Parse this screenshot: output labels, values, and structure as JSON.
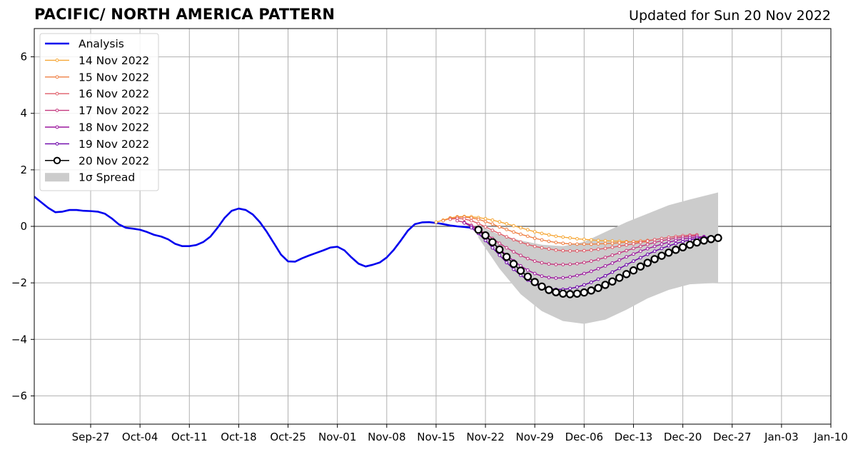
{
  "header": {
    "title": "PACIFIC/ NORTH AMERICA PATTERN",
    "updated": "Updated for Sun 20 Nov 2022"
  },
  "chart_data": {
    "type": "line",
    "ylim": [
      -7,
      7
    ],
    "yticks": [
      6,
      4,
      2,
      0,
      -2,
      -4,
      -6
    ],
    "ytick_labels": [
      "6",
      "4",
      "2",
      "0",
      "−2",
      "−4",
      "−6"
    ],
    "xlim": [
      "2022-09-19",
      "2023-01-10"
    ],
    "xticks": [
      "2022-09-27",
      "2022-10-04",
      "2022-10-11",
      "2022-10-18",
      "2022-10-25",
      "2022-11-01",
      "2022-11-08",
      "2022-11-15",
      "2022-11-22",
      "2022-11-29",
      "2022-12-06",
      "2022-12-13",
      "2022-12-20",
      "2022-12-27",
      "2023-01-03",
      "2023-01-10"
    ],
    "xtick_labels": [
      "Sep-27",
      "Oct-04",
      "Oct-11",
      "Oct-18",
      "Oct-25",
      "Nov-01",
      "Nov-08",
      "Nov-15",
      "Nov-22",
      "Nov-29",
      "Dec-06",
      "Dec-13",
      "Dec-20",
      "Dec-27",
      "Jan-03",
      "Jan-10"
    ],
    "grid": true,
    "legend_position": "top-left",
    "series": [
      {
        "name": "Analysis",
        "color": "#0000ee",
        "x": [
          "2022-09-19",
          "2022-09-20",
          "2022-09-21",
          "2022-09-22",
          "2022-09-23",
          "2022-09-24",
          "2022-09-25",
          "2022-09-26",
          "2022-09-27",
          "2022-09-28",
          "2022-09-29",
          "2022-09-30",
          "2022-10-01",
          "2022-10-02",
          "2022-10-03",
          "2022-10-04",
          "2022-10-05",
          "2022-10-06",
          "2022-10-07",
          "2022-10-08",
          "2022-10-09",
          "2022-10-10",
          "2022-10-11",
          "2022-10-12",
          "2022-10-13",
          "2022-10-14",
          "2022-10-15",
          "2022-10-16",
          "2022-10-17",
          "2022-10-18",
          "2022-10-19",
          "2022-10-20",
          "2022-10-21",
          "2022-10-22",
          "2022-10-23",
          "2022-10-24",
          "2022-10-25",
          "2022-10-26",
          "2022-10-27",
          "2022-10-28",
          "2022-10-29",
          "2022-10-30",
          "2022-10-31",
          "2022-11-01",
          "2022-11-02",
          "2022-11-03",
          "2022-11-04",
          "2022-11-05",
          "2022-11-06",
          "2022-11-07",
          "2022-11-08",
          "2022-11-09",
          "2022-11-10",
          "2022-11-11",
          "2022-11-12",
          "2022-11-13",
          "2022-11-14",
          "2022-11-15",
          "2022-11-16",
          "2022-11-17",
          "2022-11-18",
          "2022-11-19",
          "2022-11-20"
        ],
        "values": [
          1.05,
          0.85,
          0.65,
          0.5,
          0.52,
          0.58,
          0.58,
          0.55,
          0.54,
          0.52,
          0.45,
          0.28,
          0.07,
          -0.05,
          -0.08,
          -0.12,
          -0.2,
          -0.3,
          -0.36,
          -0.46,
          -0.62,
          -0.7,
          -0.7,
          -0.66,
          -0.55,
          -0.36,
          -0.05,
          0.3,
          0.55,
          0.63,
          0.58,
          0.42,
          0.15,
          -0.2,
          -0.6,
          -1.0,
          -1.24,
          -1.25,
          -1.13,
          -1.03,
          -0.94,
          -0.85,
          -0.75,
          -0.72,
          -0.85,
          -1.1,
          -1.32,
          -1.42,
          -1.36,
          -1.28,
          -1.1,
          -0.83,
          -0.5,
          -0.15,
          0.08,
          0.14,
          0.15,
          0.12,
          0.08,
          0.03,
          0.0,
          -0.02,
          -0.05
        ]
      },
      {
        "name": "14 Nov 2022",
        "color": "#f6a736",
        "x": [
          "2022-11-15",
          "2022-11-16",
          "2022-11-17",
          "2022-11-18",
          "2022-11-19",
          "2022-11-20",
          "2022-11-21",
          "2022-11-22",
          "2022-11-23",
          "2022-11-24",
          "2022-11-25",
          "2022-11-26",
          "2022-11-27",
          "2022-11-28",
          "2022-11-29",
          "2022-11-30",
          "2022-12-01",
          "2022-12-02",
          "2022-12-03",
          "2022-12-04",
          "2022-12-05",
          "2022-12-06",
          "2022-12-07",
          "2022-12-08",
          "2022-12-09",
          "2022-12-10",
          "2022-12-11",
          "2022-12-12",
          "2022-12-13",
          "2022-12-14",
          "2022-12-15"
        ],
        "values": [
          0.15,
          0.22,
          0.3,
          0.34,
          0.35,
          0.34,
          0.31,
          0.27,
          0.22,
          0.16,
          0.09,
          0.02,
          -0.05,
          -0.12,
          -0.19,
          -0.25,
          -0.3,
          -0.35,
          -0.38,
          -0.41,
          -0.44,
          -0.46,
          -0.48,
          -0.5,
          -0.51,
          -0.52,
          -0.53,
          -0.54,
          -0.55,
          -0.55,
          -0.55
        ]
      },
      {
        "name": "15 Nov 2022",
        "color": "#ef7f43",
        "x": [
          "2022-11-16",
          "2022-11-17",
          "2022-11-18",
          "2022-11-19",
          "2022-11-20",
          "2022-11-21",
          "2022-11-22",
          "2022-11-23",
          "2022-11-24",
          "2022-11-25",
          "2022-11-26",
          "2022-11-27",
          "2022-11-28",
          "2022-11-29",
          "2022-11-30",
          "2022-12-01",
          "2022-12-02",
          "2022-12-03",
          "2022-12-04",
          "2022-12-05",
          "2022-12-06",
          "2022-12-07",
          "2022-12-08",
          "2022-12-09",
          "2022-12-10",
          "2022-12-11",
          "2022-12-12",
          "2022-12-13",
          "2022-12-14",
          "2022-12-15",
          "2022-12-16"
        ],
        "values": [
          0.2,
          0.28,
          0.32,
          0.33,
          0.3,
          0.25,
          0.17,
          0.08,
          -0.02,
          -0.11,
          -0.2,
          -0.28,
          -0.35,
          -0.42,
          -0.48,
          -0.53,
          -0.57,
          -0.6,
          -0.62,
          -0.63,
          -0.63,
          -0.63,
          -0.62,
          -0.61,
          -0.6,
          -0.58,
          -0.56,
          -0.54,
          -0.52,
          -0.5,
          -0.48
        ]
      },
      {
        "name": "16 Nov 2022",
        "color": "#df5c68",
        "x": [
          "2022-11-17",
          "2022-11-18",
          "2022-11-19",
          "2022-11-20",
          "2022-11-21",
          "2022-11-22",
          "2022-11-23",
          "2022-11-24",
          "2022-11-25",
          "2022-11-26",
          "2022-11-27",
          "2022-11-28",
          "2022-11-29",
          "2022-11-30",
          "2022-12-01",
          "2022-12-02",
          "2022-12-03",
          "2022-12-04",
          "2022-12-05",
          "2022-12-06",
          "2022-12-07",
          "2022-12-08",
          "2022-12-09",
          "2022-12-10",
          "2022-12-11",
          "2022-12-12",
          "2022-12-13",
          "2022-12-14",
          "2022-12-15",
          "2022-12-16",
          "2022-12-17",
          "2022-12-18",
          "2022-12-19",
          "2022-12-20",
          "2022-12-21",
          "2022-12-22"
        ],
        "values": [
          0.25,
          0.28,
          0.26,
          0.2,
          0.1,
          -0.02,
          -0.14,
          -0.26,
          -0.37,
          -0.47,
          -0.56,
          -0.64,
          -0.71,
          -0.76,
          -0.8,
          -0.84,
          -0.86,
          -0.87,
          -0.87,
          -0.86,
          -0.84,
          -0.81,
          -0.78,
          -0.74,
          -0.7,
          -0.66,
          -0.62,
          -0.57,
          -0.52,
          -0.47,
          -0.43,
          -0.39,
          -0.36,
          -0.33,
          -0.31,
          -0.3
        ]
      },
      {
        "name": "17 Nov 2022",
        "color": "#c4387f",
        "x": [
          "2022-11-18",
          "2022-11-19",
          "2022-11-20",
          "2022-11-21",
          "2022-11-22",
          "2022-11-23",
          "2022-11-24",
          "2022-11-25",
          "2022-11-26",
          "2022-11-27",
          "2022-11-28",
          "2022-11-29",
          "2022-11-30",
          "2022-12-01",
          "2022-12-02",
          "2022-12-03",
          "2022-12-04",
          "2022-12-05",
          "2022-12-06",
          "2022-12-07",
          "2022-12-08",
          "2022-12-09",
          "2022-12-10",
          "2022-12-11",
          "2022-12-12",
          "2022-12-13",
          "2022-12-14",
          "2022-12-15",
          "2022-12-16",
          "2022-12-17",
          "2022-12-18",
          "2022-12-19",
          "2022-12-20",
          "2022-12-21",
          "2022-12-22"
        ],
        "values": [
          0.2,
          0.14,
          0.04,
          -0.1,
          -0.26,
          -0.43,
          -0.6,
          -0.76,
          -0.9,
          -1.03,
          -1.14,
          -1.23,
          -1.29,
          -1.33,
          -1.35,
          -1.35,
          -1.34,
          -1.32,
          -1.28,
          -1.23,
          -1.17,
          -1.1,
          -1.02,
          -0.94,
          -0.86,
          -0.78,
          -0.71,
          -0.64,
          -0.57,
          -0.51,
          -0.46,
          -0.42,
          -0.38,
          -0.35,
          -0.33
        ]
      },
      {
        "name": "18 Nov 2022",
        "color": "#9c179e",
        "x": [
          "2022-11-19",
          "2022-11-20",
          "2022-11-21",
          "2022-11-22",
          "2022-11-23",
          "2022-11-24",
          "2022-11-25",
          "2022-11-26",
          "2022-11-27",
          "2022-11-28",
          "2022-11-29",
          "2022-11-30",
          "2022-12-01",
          "2022-12-02",
          "2022-12-03",
          "2022-12-04",
          "2022-12-05",
          "2022-12-06",
          "2022-12-07",
          "2022-12-08",
          "2022-12-09",
          "2022-12-10",
          "2022-12-11",
          "2022-12-12",
          "2022-12-13",
          "2022-12-14",
          "2022-12-15",
          "2022-12-16",
          "2022-12-17",
          "2022-12-18",
          "2022-12-19",
          "2022-12-20",
          "2022-12-21",
          "2022-12-22",
          "2022-12-23"
        ],
        "values": [
          0.12,
          0.0,
          -0.16,
          -0.36,
          -0.58,
          -0.8,
          -1.02,
          -1.22,
          -1.4,
          -1.55,
          -1.67,
          -1.76,
          -1.81,
          -1.83,
          -1.82,
          -1.79,
          -1.74,
          -1.67,
          -1.59,
          -1.5,
          -1.4,
          -1.3,
          -1.19,
          -1.08,
          -0.98,
          -0.88,
          -0.79,
          -0.71,
          -0.63,
          -0.56,
          -0.5,
          -0.45,
          -0.41,
          -0.38,
          -0.36
        ]
      },
      {
        "name": "19 Nov 2022",
        "color": "#6a00a8",
        "x": [
          "2022-11-20",
          "2022-11-21",
          "2022-11-22",
          "2022-11-23",
          "2022-11-24",
          "2022-11-25",
          "2022-11-26",
          "2022-11-27",
          "2022-11-28",
          "2022-11-29",
          "2022-11-30",
          "2022-12-01",
          "2022-12-02",
          "2022-12-03",
          "2022-12-04",
          "2022-12-05",
          "2022-12-06",
          "2022-12-07",
          "2022-12-08",
          "2022-12-09",
          "2022-12-10",
          "2022-12-11",
          "2022-12-12",
          "2022-12-13",
          "2022-12-14",
          "2022-12-15",
          "2022-12-16",
          "2022-12-17",
          "2022-12-18",
          "2022-12-19",
          "2022-12-20",
          "2022-12-21",
          "2022-12-22",
          "2022-12-23",
          "2022-12-24"
        ],
        "values": [
          -0.05,
          -0.25,
          -0.5,
          -0.76,
          -1.02,
          -1.28,
          -1.52,
          -1.73,
          -1.9,
          -2.04,
          -2.14,
          -2.2,
          -2.23,
          -2.23,
          -2.2,
          -2.15,
          -2.07,
          -1.98,
          -1.87,
          -1.75,
          -1.62,
          -1.49,
          -1.36,
          -1.23,
          -1.11,
          -0.99,
          -0.88,
          -0.78,
          -0.69,
          -0.61,
          -0.54,
          -0.48,
          -0.43,
          -0.39,
          -0.37
        ]
      },
      {
        "name": "20 Nov 2022",
        "color": "#000000",
        "x": [
          "2022-11-21",
          "2022-11-22",
          "2022-11-23",
          "2022-11-24",
          "2022-11-25",
          "2022-11-26",
          "2022-11-27",
          "2022-11-28",
          "2022-11-29",
          "2022-11-30",
          "2022-12-01",
          "2022-12-02",
          "2022-12-03",
          "2022-12-04",
          "2022-12-05",
          "2022-12-06",
          "2022-12-07",
          "2022-12-08",
          "2022-12-09",
          "2022-12-10",
          "2022-12-11",
          "2022-12-12",
          "2022-12-13",
          "2022-12-14",
          "2022-12-15",
          "2022-12-16",
          "2022-12-17",
          "2022-12-18",
          "2022-12-19",
          "2022-12-20",
          "2022-12-21",
          "2022-12-22",
          "2022-12-23",
          "2022-12-24",
          "2022-12-25"
        ],
        "values": [
          -0.12,
          -0.32,
          -0.56,
          -0.82,
          -1.08,
          -1.33,
          -1.57,
          -1.78,
          -1.97,
          -2.13,
          -2.25,
          -2.33,
          -2.38,
          -2.4,
          -2.38,
          -2.34,
          -2.27,
          -2.18,
          -2.07,
          -1.95,
          -1.82,
          -1.69,
          -1.56,
          -1.42,
          -1.29,
          -1.16,
          -1.04,
          -0.93,
          -0.83,
          -0.74,
          -0.65,
          -0.57,
          -0.5,
          -0.45,
          -0.41
        ]
      }
    ],
    "spread": {
      "name": "1σ Spread",
      "color": "#cccccc",
      "x": [
        "2022-11-21",
        "2022-11-24",
        "2022-11-27",
        "2022-11-30",
        "2022-12-03",
        "2022-12-06",
        "2022-12-09",
        "2022-12-12",
        "2022-12-15",
        "2022-12-18",
        "2022-12-21",
        "2022-12-25"
      ],
      "upper": [
        0.05,
        -0.3,
        -0.5,
        -0.65,
        -0.7,
        -0.55,
        -0.2,
        0.15,
        0.45,
        0.75,
        0.95,
        1.2
      ],
      "lower": [
        -0.4,
        -1.5,
        -2.4,
        -3.0,
        -3.35,
        -3.45,
        -3.3,
        -2.95,
        -2.55,
        -2.25,
        -2.05,
        -2.0
      ]
    }
  }
}
